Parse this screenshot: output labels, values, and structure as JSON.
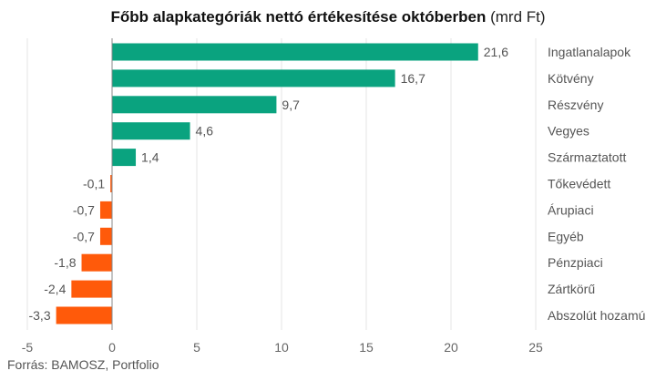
{
  "chart_data": {
    "type": "bar",
    "orientation": "horizontal",
    "title": "Főbb alapkategóriák nettó értékesítése októberben",
    "title_unit": "(mrd Ft)",
    "categories": [
      "Ingatlanalapok",
      "Kötvény",
      "Részvény",
      "Vegyes",
      "Származtatott",
      "Tőkevédett",
      "Árupiaci",
      "Egyéb",
      "Pénzpiaci",
      "Zártkörű",
      "Abszolút hozamú"
    ],
    "values": [
      21.6,
      16.7,
      9.7,
      4.6,
      1.4,
      -0.1,
      -0.7,
      -0.7,
      -1.8,
      -2.4,
      -3.3
    ],
    "value_labels": [
      "21,6",
      "16,7",
      "9,7",
      "4,6",
      "1,4",
      "-0,1",
      "-0,7",
      "-0,7",
      "-1,8",
      "-2,4",
      "-3,3"
    ],
    "xlim": [
      -5,
      25
    ],
    "xticks": [
      -5,
      0,
      5,
      10,
      15,
      20,
      25
    ],
    "xtick_labels": [
      "-5",
      "0",
      "5",
      "10",
      "15",
      "20",
      "25"
    ],
    "grid": true,
    "colors": {
      "positive": "#0aa37f",
      "negative": "#ff5a0a",
      "grid": "#e4e4e4",
      "zero_line": "#888888"
    }
  },
  "source": "Forrás: BAMOSZ, Portfolio"
}
